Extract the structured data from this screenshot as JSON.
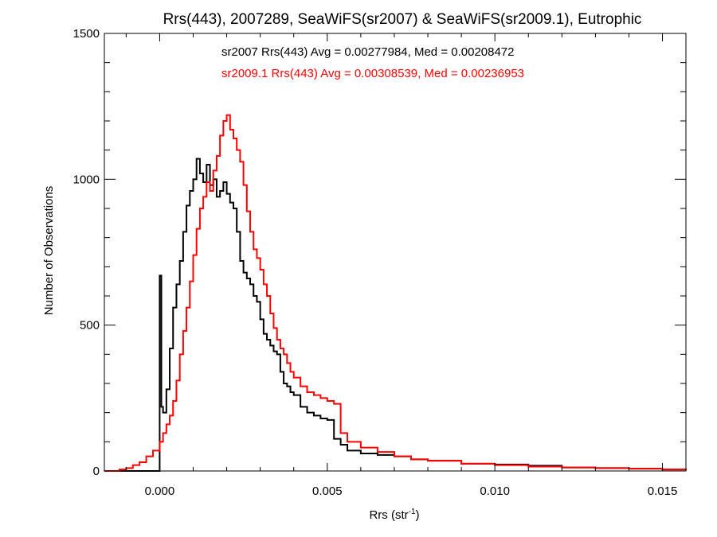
{
  "chart_data": {
    "type": "line",
    "title": "Rrs(443), 2007289, SeaWiFS(sr2007) & SeaWiFS(sr2009.1), Eutrophic",
    "xlabel_main": "Rrs (str",
    "xlabel_sup": "-1",
    "xlabel_close": ")",
    "ylabel": "Number of Observations",
    "xlim": [
      -0.00165,
      0.0157
    ],
    "ylim": [
      0,
      1500
    ],
    "xticks": [
      0.0,
      0.005,
      0.01,
      0.015
    ],
    "xtick_labels": [
      "0.000",
      "0.005",
      "0.010",
      "0.015"
    ],
    "yticks": [
      0,
      500,
      1000,
      1500
    ],
    "ytick_labels": [
      "0",
      "500",
      "1000",
      "1500"
    ],
    "annotations": [
      {
        "text": "sr2007 Rrs(443) Avg = 0.00277984, Med = 0.00208472",
        "color": "#000000"
      },
      {
        "text": "sr2009.1 Rrs(443) Avg = 0.00308539, Med = 0.00236953",
        "color": "#ff0000"
      }
    ],
    "series": [
      {
        "color": "#000000",
        "style": "step",
        "x": [
          -0.00165,
          -0.0015,
          -0.001,
          -0.0005,
          -5e-05,
          0.0,
          5e-05,
          0.0001,
          0.0002,
          0.0003,
          0.0004,
          0.0005,
          0.0006,
          0.0007,
          0.0008,
          0.0009,
          0.001,
          0.0011,
          0.0012,
          0.0013,
          0.0014,
          0.0015,
          0.0016,
          0.0017,
          0.0018,
          0.0019,
          0.002,
          0.0021,
          0.0022,
          0.0023,
          0.0024,
          0.0025,
          0.0026,
          0.0027,
          0.0028,
          0.0029,
          0.003,
          0.0031,
          0.0032,
          0.0033,
          0.0034,
          0.0035,
          0.0036,
          0.0037,
          0.0038,
          0.0039,
          0.004,
          0.0042,
          0.0044,
          0.0046,
          0.0048,
          0.005,
          0.0052,
          0.0054,
          0.0056,
          0.006,
          0.0065,
          0.007,
          0.0075,
          0.008,
          0.009,
          0.01,
          0.011,
          0.012,
          0.013,
          0.014,
          0.015,
          0.0157
        ],
        "y": [
          0,
          0,
          0,
          0,
          0,
          670,
          220,
          200,
          280,
          420,
          560,
          640,
          720,
          820,
          910,
          960,
          1000,
          1070,
          1020,
          990,
          1050,
          980,
          1000,
          940,
          960,
          990,
          950,
          920,
          900,
          820,
          720,
          680,
          660,
          640,
          600,
          580,
          520,
          470,
          450,
          430,
          410,
          400,
          340,
          300,
          290,
          270,
          260,
          220,
          200,
          190,
          180,
          175,
          110,
          90,
          70,
          60,
          55,
          50,
          40,
          35,
          25,
          22,
          18,
          12,
          10,
          8,
          5,
          3
        ]
      },
      {
        "color": "#ff0000",
        "style": "step",
        "x": [
          -0.00165,
          -0.0012,
          -0.001,
          -0.0008,
          -0.0006,
          -0.0004,
          -0.0002,
          0.0,
          0.0001,
          0.0002,
          0.0003,
          0.0004,
          0.0005,
          0.0006,
          0.0007,
          0.0008,
          0.0009,
          0.001,
          0.0011,
          0.0012,
          0.0013,
          0.0014,
          0.0015,
          0.0016,
          0.0017,
          0.0018,
          0.0019,
          0.002,
          0.0021,
          0.0022,
          0.0023,
          0.0024,
          0.0025,
          0.0026,
          0.0027,
          0.0028,
          0.0029,
          0.003,
          0.0031,
          0.0032,
          0.0033,
          0.0034,
          0.0035,
          0.0036,
          0.0037,
          0.0038,
          0.0039,
          0.004,
          0.0042,
          0.0044,
          0.0046,
          0.0048,
          0.005,
          0.0052,
          0.0054,
          0.0056,
          0.006,
          0.0065,
          0.007,
          0.0075,
          0.008,
          0.009,
          0.01,
          0.011,
          0.012,
          0.013,
          0.014,
          0.015,
          0.0157
        ],
        "y": [
          0,
          5,
          10,
          20,
          30,
          50,
          70,
          100,
          130,
          160,
          190,
          240,
          310,
          400,
          480,
          560,
          650,
          740,
          830,
          900,
          940,
          990,
          960,
          1030,
          1080,
          1150,
          1200,
          1220,
          1170,
          1140,
          1100,
          1060,
          980,
          890,
          820,
          760,
          730,
          690,
          640,
          600,
          540,
          490,
          450,
          420,
          400,
          370,
          340,
          320,
          290,
          270,
          260,
          250,
          240,
          230,
          130,
          100,
          80,
          65,
          50,
          40,
          35,
          25,
          20,
          15,
          12,
          10,
          8,
          5,
          3
        ]
      }
    ]
  }
}
